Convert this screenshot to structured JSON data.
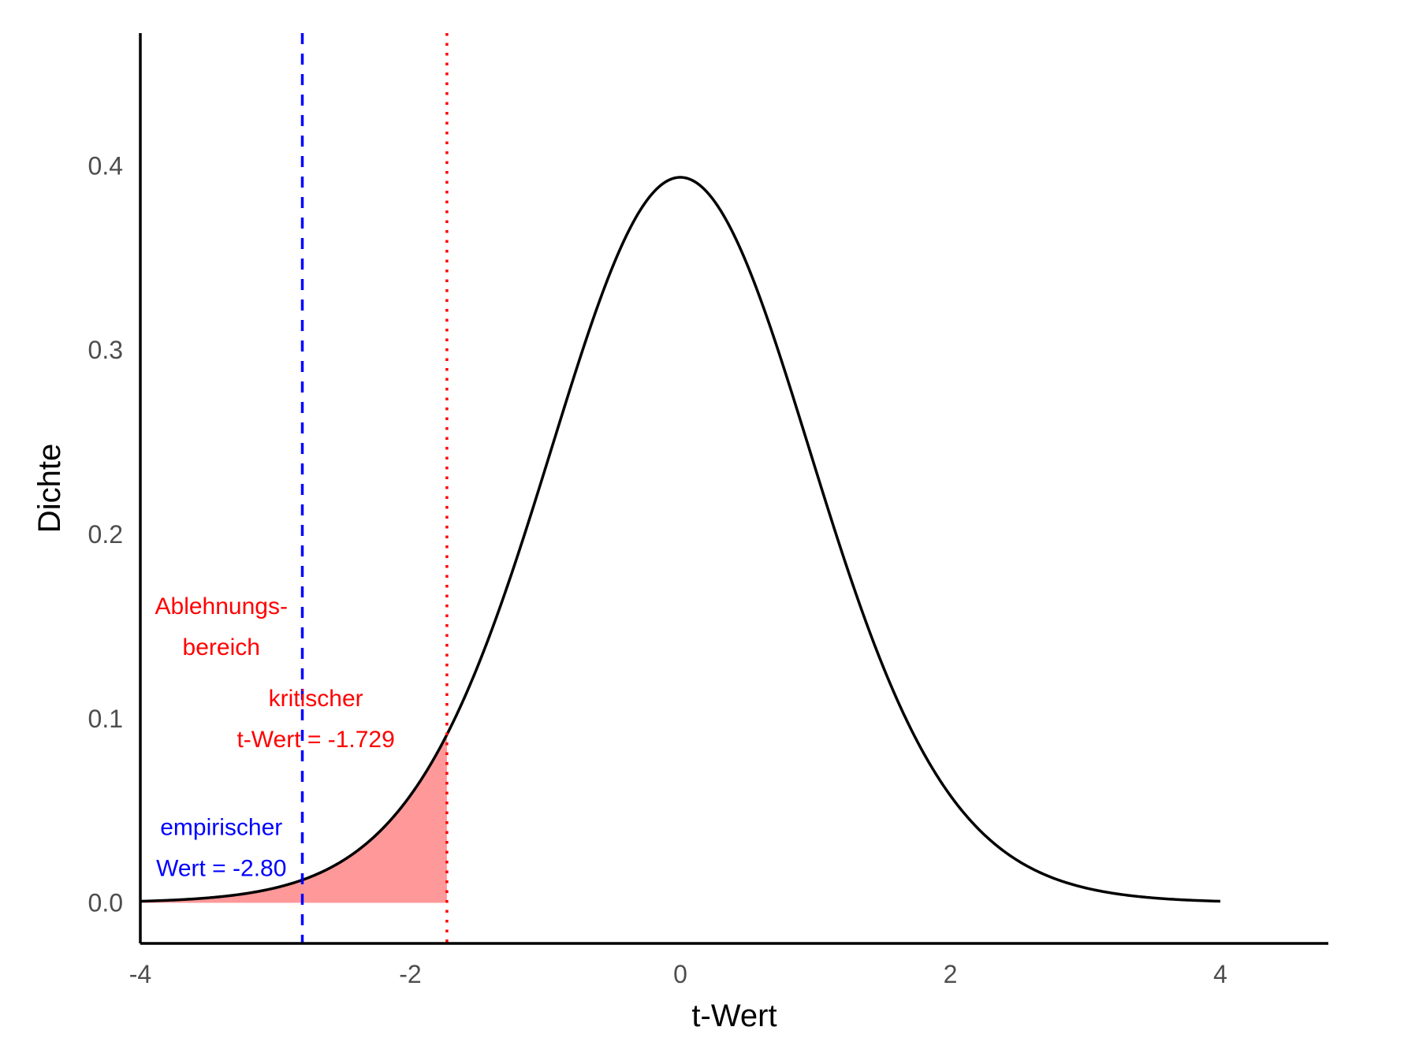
{
  "chart_data": {
    "type": "line",
    "title": "",
    "xlabel": "t-Wert",
    "ylabel": "Dichte",
    "xlim": [
      -4,
      4.8
    ],
    "ylim": [
      -0.022,
      0.472
    ],
    "x_ticks": [
      -4,
      -2,
      0,
      2,
      4
    ],
    "x_tick_labels": [
      "-4",
      "-2",
      "0",
      "2",
      "4"
    ],
    "y_ticks": [
      0.0,
      0.1,
      0.2,
      0.3,
      0.4
    ],
    "y_tick_labels": [
      "0.0",
      "0.1",
      "0.2",
      "0.3",
      "0.4"
    ],
    "grid": false,
    "legend": "none",
    "series": [
      {
        "distribution": "t",
        "df": 19,
        "x_range": [
          -4,
          4
        ],
        "color": "#000000"
      }
    ],
    "shaded_region": {
      "x_from": -4,
      "x_to": -1.729,
      "color": "#FF9999"
    },
    "vlines": [
      {
        "x": -2.8,
        "style": "dashed",
        "color": "#0000FF"
      },
      {
        "x": -1.729,
        "style": "dotted",
        "color": "#FF0000"
      }
    ],
    "annotations": [
      {
        "lines": [
          "Ablehnungs-",
          "bereich"
        ],
        "x": -3.4,
        "y": 0.15,
        "color": "#FF0000"
      },
      {
        "lines": [
          "kritischer",
          "t-Wert = -1.729"
        ],
        "x": -2.7,
        "y": 0.1,
        "color": "#FF0000"
      },
      {
        "lines": [
          "empirischer",
          "Wert = -2.80"
        ],
        "x": -3.4,
        "y": 0.03,
        "color": "#0000FF"
      }
    ]
  }
}
